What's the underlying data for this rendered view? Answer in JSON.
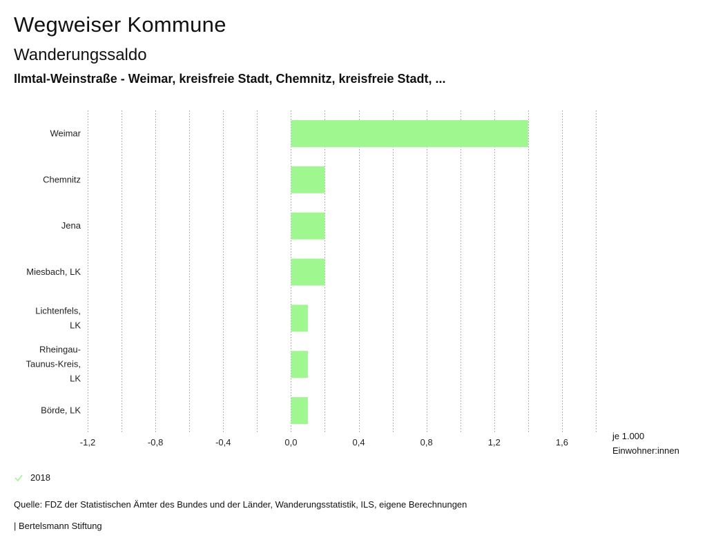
{
  "header": {
    "title": "Wegweiser Kommune",
    "subtitle": "Wanderungssaldo",
    "region": "Ilmtal-Weinstraße - Weimar, kreisfreie Stadt, Chemnitz, kreisfreie Stadt, ..."
  },
  "chart_data": {
    "type": "bar",
    "orientation": "horizontal",
    "categories": [
      [
        "Weimar"
      ],
      [
        "Chemnitz"
      ],
      [
        "Jena"
      ],
      [
        "Miesbach, LK"
      ],
      [
        "Lichtenfels,",
        "LK"
      ],
      [
        "Rheingau-",
        "Taunus-Kreis,",
        "LK"
      ],
      [
        "Börde, LK"
      ]
    ],
    "series": [
      {
        "name": "2018",
        "values": [
          1.4,
          0.2,
          0.2,
          0.2,
          0.1,
          0.1,
          0.1
        ]
      }
    ],
    "xlim": [
      -1.2,
      1.8
    ],
    "xticks": [
      -1.2,
      -0.8,
      -0.4,
      0.0,
      0.4,
      0.8,
      1.2,
      1.6
    ],
    "xtick_labels": [
      "-1,2",
      "-0,8",
      "-0,4",
      "0,0",
      "0,4",
      "0,8",
      "1,2",
      "1,6"
    ],
    "grid": "vertical dotted",
    "xlabel_lines": [
      "je 1.000",
      "Einwohner:innen"
    ],
    "bar_color": "#9ef78f"
  },
  "legend": {
    "label": "2018",
    "color": "#9ef78f"
  },
  "footer": {
    "source": "Quelle: FDZ der Statistischen Ämter des Bundes und der Länder, Wanderungsstatistik, ILS, eigene Berechnungen",
    "credit": "| Bertelsmann Stiftung"
  }
}
